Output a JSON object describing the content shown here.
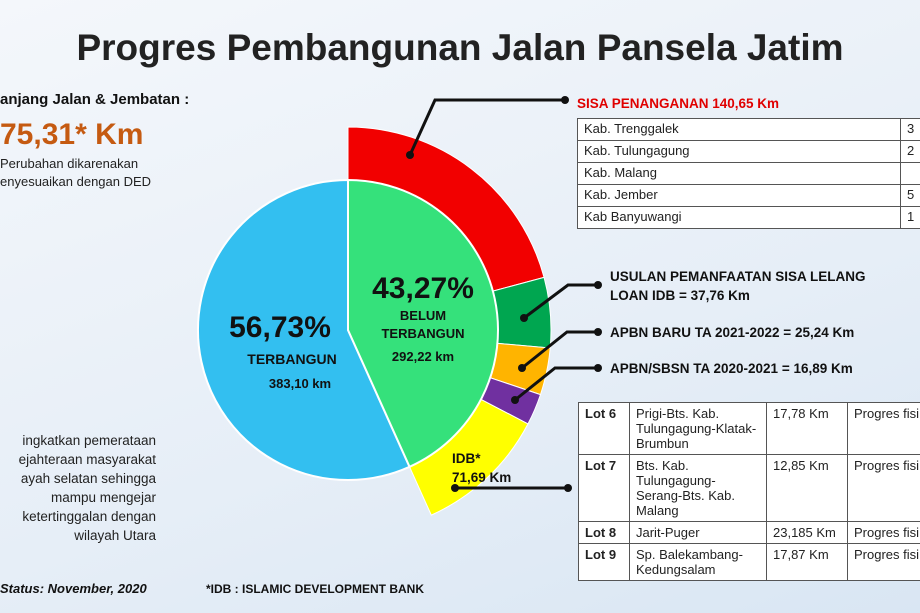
{
  "header": {
    "title": "Progres Pembangunan Jalan Pansela Jatim"
  },
  "summary": {
    "heading": "anjang Jalan & Jembatan :",
    "total": "75,31* Km",
    "note": [
      "Perubahan dikarenakan",
      "enyesuaikan dengan DED"
    ]
  },
  "pie": {
    "segments": [
      {
        "value": 56.73,
        "label": "56,73%",
        "name": [
          "TERBANGUN"
        ],
        "length": "383,10 km",
        "color": "#33bff0"
      },
      {
        "value": 43.27,
        "label": "43,27%",
        "name": [
          "BELUM",
          "TERBANGUN"
        ],
        "length": "292,22 km",
        "color": "#35e17b"
      }
    ]
  },
  "ring": [
    {
      "value": 140.65,
      "label": [
        "SISA PENANGANAN 140,65 Km"
      ],
      "color": "#f20000"
    },
    {
      "value": 37.76,
      "label": [
        "USULAN PEMANFAATAN SISA LELANG",
        "LOAN IDB = 37,76 Km"
      ],
      "color": "#00a650"
    },
    {
      "value": 25.24,
      "label": [
        "APBN BARU TA 2021-2022 = 25,24 Km"
      ],
      "color": "#ffb400"
    },
    {
      "value": 16.89,
      "label": [
        "APBN/SBSN TA 2020-2021 = 16,89 Km"
      ],
      "color": "#7030a0"
    },
    {
      "value": 71.69,
      "label": [
        "IDB*",
        "71,69 Km"
      ],
      "color": "#ffff00"
    }
  ],
  "regions_table": {
    "rows": [
      [
        "Kab. Trenggalek",
        "3"
      ],
      [
        "Kab. Tulungagung",
        "2"
      ],
      [
        "Kab. Malang"
      ],
      [
        "Kab. Jember",
        "5"
      ],
      [
        "Kab Banyuwangi",
        "1"
      ]
    ]
  },
  "lots_table": {
    "rows": [
      [
        "Lot 6",
        "Prigi-Bts. Kab. Tulungagung-Klatak-Brumbun",
        "17,78 Km",
        "Progres fisi"
      ],
      [
        "Lot 7",
        "Bts. Kab. Tulungagung-Serang-Bts. Kab. Malang",
        "12,85 Km",
        "Progres fisi"
      ],
      [
        "Lot 8",
        "Jarit-Puger",
        "23,185 Km",
        "Progres fisi"
      ],
      [
        "Lot 9",
        "Sp. Balekambang-Kedungsalam",
        "17,87 Km",
        "Progres fisi"
      ]
    ]
  },
  "description": [
    "ingkatkan pemerataan",
    "ejahteraan masyarakat",
    "ayah selatan sehingga",
    "mampu mengejar",
    "ketertinggalan dengan",
    "wilayah Utara"
  ],
  "footer": {
    "status": "Status: November, 2020",
    "note": "*IDB : ISLAMIC DEVELOPMENT BANK"
  }
}
